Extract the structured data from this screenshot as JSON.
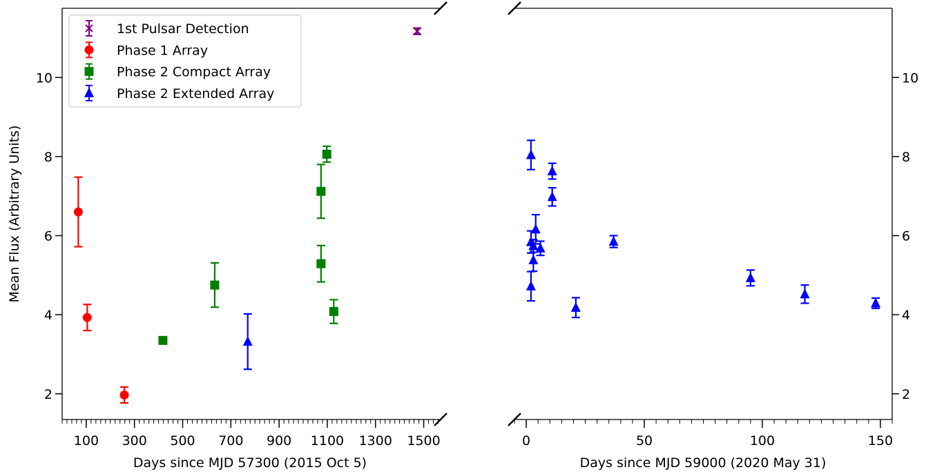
{
  "chart_data": {
    "type": "scatter",
    "ylabel": "Mean Flux (Arbitrary Units)",
    "ylim": [
      1.35,
      11.75
    ],
    "yticks": [
      2,
      4,
      6,
      8,
      10
    ],
    "legend_position": "upper-left",
    "errorbars": true,
    "broken_axis": true,
    "panels": [
      {
        "id": "left",
        "xlabel": "Days since MJD 57300 (2015 Oct 5)",
        "xlim": [
          0,
          1570
        ],
        "xticks": [
          100,
          300,
          500,
          700,
          900,
          1100,
          1300,
          1500
        ],
        "minor_xtick_step": 20
      },
      {
        "id": "right",
        "xlabel": "Days since MJD 59000 (2020 May 31)",
        "xlim": [
          -5,
          155
        ],
        "xticks": [
          0,
          50,
          100,
          150
        ],
        "minor_xtick_step": 5
      }
    ],
    "series": [
      {
        "name": "1st Pulsar Detection",
        "color": "#800080",
        "marker": "x",
        "panel": "left",
        "points": [
          {
            "x": 1473,
            "y": 11.17,
            "err": 0.08
          }
        ]
      },
      {
        "name": "Phase 1 Array",
        "color": "#ff0000",
        "marker": "circle",
        "panel": "left",
        "points": [
          {
            "x": 67,
            "y": 6.6,
            "err": 0.88
          },
          {
            "x": 104,
            "y": 3.93,
            "err": 0.33
          },
          {
            "x": 258,
            "y": 1.97,
            "err": 0.2
          }
        ]
      },
      {
        "name": "Phase 2 Compact Array",
        "color": "#008000",
        "marker": "square",
        "panel": "left",
        "points": [
          {
            "x": 418,
            "y": 3.35,
            "err": 0.06
          },
          {
            "x": 633,
            "y": 4.75,
            "err": 0.56
          },
          {
            "x": 1074,
            "y": 7.12,
            "err": 0.68
          },
          {
            "x": 1074,
            "y": 5.29,
            "err": 0.46
          },
          {
            "x": 1098,
            "y": 8.06,
            "err": 0.2
          },
          {
            "x": 1127,
            "y": 4.08,
            "err": 0.3
          }
        ]
      },
      {
        "name": "Phase 2 Extended Array",
        "color": "#0000ff",
        "marker": "triangle",
        "panels_note": "points split across both panels",
        "points": [
          {
            "panel": "left",
            "x": 770,
            "y": 3.32,
            "err": 0.7
          },
          {
            "panel": "right",
            "x": 2,
            "y": 8.04,
            "err": 0.37
          },
          {
            "panel": "right",
            "x": 2,
            "y": 5.84,
            "err": 0.28
          },
          {
            "panel": "right",
            "x": 2,
            "y": 4.72,
            "err": 0.37
          },
          {
            "panel": "right",
            "x": 3,
            "y": 5.74,
            "err": 0.16
          },
          {
            "panel": "right",
            "x": 3,
            "y": 5.38,
            "err": 0.28
          },
          {
            "panel": "right",
            "x": 4,
            "y": 6.16,
            "err": 0.37
          },
          {
            "panel": "right",
            "x": 6,
            "y": 5.68,
            "err": 0.18
          },
          {
            "panel": "right",
            "x": 11,
            "y": 7.63,
            "err": 0.2
          },
          {
            "panel": "right",
            "x": 11,
            "y": 6.98,
            "err": 0.23
          },
          {
            "panel": "right",
            "x": 21,
            "y": 4.18,
            "err": 0.25
          },
          {
            "panel": "right",
            "x": 37,
            "y": 5.85,
            "err": 0.15
          },
          {
            "panel": "right",
            "x": 95,
            "y": 4.93,
            "err": 0.2
          },
          {
            "panel": "right",
            "x": 118,
            "y": 4.52,
            "err": 0.23
          },
          {
            "panel": "right",
            "x": 148,
            "y": 4.29,
            "err": 0.13
          }
        ]
      }
    ]
  }
}
